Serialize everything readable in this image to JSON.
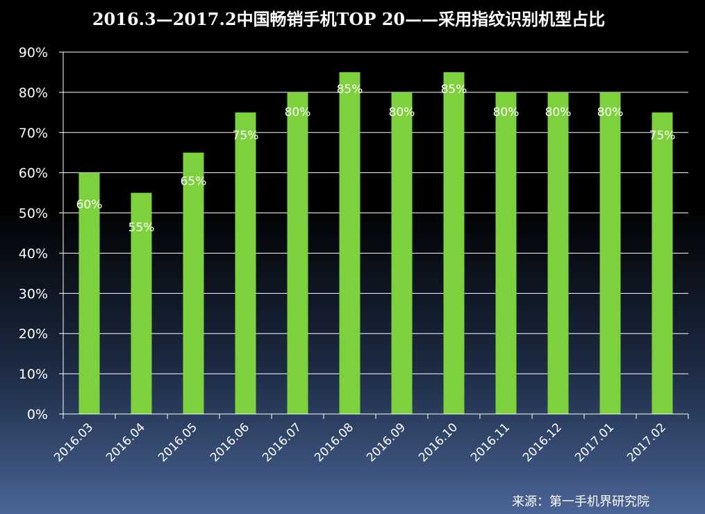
{
  "chart_data": {
    "type": "bar",
    "title": "2016.3—2017.2中国畅销手机TOP 20——采用指纹识别机型占比",
    "categories": [
      "2016.03",
      "2016.04",
      "2016.05",
      "2016.06",
      "2016.07",
      "2016.08",
      "2016.09",
      "2016.10",
      "2016.11",
      "2016.12",
      "2017.01",
      "2017.02"
    ],
    "values": [
      60,
      55,
      65,
      75,
      80,
      85,
      80,
      85,
      80,
      80,
      80,
      75
    ],
    "data_labels": [
      "60%",
      "55%",
      "65%",
      "75%",
      "80%",
      "85%",
      "80%",
      "85%",
      "80%",
      "80%",
      "80%",
      "75%"
    ],
    "y_tick_labels": [
      "0%",
      "10%",
      "20%",
      "30%",
      "40%",
      "50%",
      "60%",
      "70%",
      "80%",
      "90%"
    ],
    "ylim": [
      0,
      90
    ],
    "xlabel": "",
    "ylabel": "",
    "grid": true,
    "legend": "none",
    "source": "来源：第一手机界研究院",
    "colors": {
      "bar": "#7dd13c",
      "grid": "#ffffff",
      "text": "#ffffff"
    }
  }
}
